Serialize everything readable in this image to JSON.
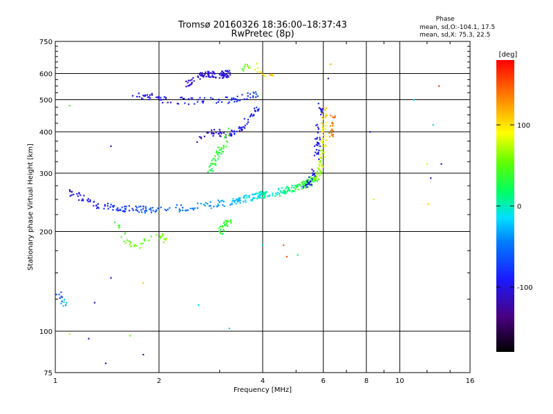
{
  "chart_data": {
    "type": "scatter",
    "title": "Tromsø 20160326 18:36:00–18:37:43",
    "subtitle": "RwPretec (8p)",
    "xlabel": "Frequency [MHz]",
    "ylabel": "Stationary phase Virtual Height [km]",
    "xscale": "log",
    "yscale": "log",
    "xlim": [
      1,
      16
    ],
    "ylim": [
      75,
      750
    ],
    "xticks": [
      1,
      2,
      4,
      6,
      8,
      10,
      16
    ],
    "xtick_labels": [
      "1",
      "2",
      "4",
      "6",
      "8",
      "10",
      "16"
    ],
    "yticks": [
      75,
      100,
      200,
      300,
      400,
      500,
      600,
      750
    ],
    "ytick_labels": [
      "75",
      "100",
      "200",
      "300",
      "400",
      "500",
      "600",
      "750"
    ],
    "grid": true,
    "stats": {
      "heading": "Phase",
      "line_o": "mean, sd,O:-104.1, 17.5",
      "line_x": "mean, sd,X: 75.3, 22.5"
    },
    "colorbar": {
      "label": "[deg]",
      "min": -180,
      "max": 180,
      "ticks": [
        100,
        0,
        -100
      ],
      "tick_labels": [
        "100",
        "0",
        "-100"
      ]
    },
    "traces": [
      {
        "name": "O-mode F-layer trace",
        "phase_deg": -105,
        "phase_end_deg": 30,
        "points": [
          [
            1.1,
            265
          ],
          [
            1.2,
            250
          ],
          [
            1.35,
            240
          ],
          [
            1.5,
            236
          ],
          [
            1.7,
            234
          ],
          [
            1.9,
            233
          ],
          [
            2.1,
            234
          ],
          [
            2.4,
            236
          ],
          [
            2.8,
            240
          ],
          [
            3.2,
            245
          ],
          [
            3.6,
            252
          ],
          [
            4.0,
            258
          ],
          [
            4.4,
            263
          ],
          [
            4.8,
            268
          ],
          [
            5.2,
            274
          ],
          [
            5.5,
            281
          ],
          [
            5.7,
            292
          ]
        ],
        "count": 260
      },
      {
        "name": "X-mode F-layer trace",
        "phase_deg": -20,
        "phase_end_deg": 110,
        "points": [
          [
            3.2,
            245
          ],
          [
            3.6,
            252
          ],
          [
            4.0,
            258
          ],
          [
            4.4,
            262
          ],
          [
            4.8,
            268
          ],
          [
            5.2,
            275
          ],
          [
            5.5,
            282
          ],
          [
            5.7,
            290
          ],
          [
            5.85,
            300
          ],
          [
            5.95,
            330
          ],
          [
            6.0,
            370
          ],
          [
            6.02,
            420
          ],
          [
            6.05,
            480
          ]
        ],
        "count": 170
      },
      {
        "name": "O-mode critical rise",
        "phase_deg": -100,
        "phase_end_deg": -90,
        "points": [
          [
            5.3,
            272
          ],
          [
            5.5,
            285
          ],
          [
            5.65,
            310
          ],
          [
            5.75,
            350
          ],
          [
            5.8,
            400
          ],
          [
            5.85,
            440
          ],
          [
            5.9,
            480
          ]
        ],
        "count": 60
      },
      {
        "name": "X-mode critical rise",
        "phase_deg": 130,
        "phase_end_deg": 150,
        "points": [
          [
            6.3,
            380
          ],
          [
            6.35,
            410
          ],
          [
            6.4,
            450
          ]
        ],
        "count": 20
      },
      {
        "name": "Multi-hop arc",
        "phase_deg": -105,
        "phase_end_deg": -75,
        "points": [
          [
            1.7,
            520
          ],
          [
            1.9,
            510
          ],
          [
            2.1,
            500
          ],
          [
            2.4,
            495
          ],
          [
            2.8,
            497
          ],
          [
            3.2,
            500
          ],
          [
            3.6,
            510
          ],
          [
            3.9,
            520
          ]
        ],
        "count": 90
      },
      {
        "name": "High echo cluster",
        "phase_deg": -110,
        "phase_end_deg": -100,
        "points": [
          [
            2.4,
            560
          ],
          [
            2.6,
            590
          ],
          [
            2.8,
            600
          ],
          [
            3.0,
            595
          ],
          [
            3.2,
            600
          ]
        ],
        "count": 90
      },
      {
        "name": "Mid loop",
        "phase_deg": -110,
        "phase_end_deg": -85,
        "points": [
          [
            2.6,
            380
          ],
          [
            2.9,
            400
          ],
          [
            3.2,
            390
          ],
          [
            3.5,
            410
          ],
          [
            3.7,
            450
          ],
          [
            3.9,
            480
          ]
        ],
        "count": 70
      },
      {
        "name": "Green vertical trace",
        "phase_deg": 30,
        "phase_end_deg": 40,
        "points": [
          [
            2.8,
            300
          ],
          [
            2.9,
            330
          ],
          [
            3.0,
            350
          ],
          [
            3.1,
            370
          ],
          [
            3.2,
            410
          ]
        ],
        "count": 50
      },
      {
        "name": "Low green cluster",
        "phase_deg": 30,
        "phase_end_deg": 45,
        "points": [
          [
            3.0,
            200
          ],
          [
            3.1,
            210
          ],
          [
            3.2,
            215
          ]
        ],
        "count": 30
      },
      {
        "name": "Sporadic echoes",
        "phase_deg": 40,
        "phase_end_deg": 60,
        "points": [
          [
            1.5,
            210
          ],
          [
            1.6,
            190
          ],
          [
            1.7,
            180
          ],
          [
            2.0,
            195
          ],
          [
            2.1,
            190
          ]
        ],
        "count": 40
      },
      {
        "name": "Low-frequency echoes",
        "phase_deg": -80,
        "phase_end_deg": -20,
        "points": [
          [
            1.02,
            130
          ],
          [
            1.05,
            125
          ],
          [
            1.08,
            120
          ]
        ],
        "count": 15
      },
      {
        "name": "Upper green patches",
        "phase_deg": 40,
        "phase_end_deg": 120,
        "points": [
          [
            3.5,
            620
          ],
          [
            3.7,
            640
          ],
          [
            4.0,
            600
          ],
          [
            4.3,
            590
          ]
        ],
        "count": 25
      }
    ],
    "scatter_points": [
      {
        "x": 1.4,
        "y": 80,
        "phase": -105
      },
      {
        "x": 1.25,
        "y": 95,
        "phase": -110
      },
      {
        "x": 1.8,
        "y": 85,
        "phase": -110
      },
      {
        "x": 1.65,
        "y": 97,
        "phase": 45
      },
      {
        "x": 1.1,
        "y": 98,
        "phase": 70
      },
      {
        "x": 1.3,
        "y": 122,
        "phase": -110
      },
      {
        "x": 1.45,
        "y": 145,
        "phase": -110
      },
      {
        "x": 1.8,
        "y": 140,
        "phase": 110
      },
      {
        "x": 1.45,
        "y": 362,
        "phase": -110
      },
      {
        "x": 1.1,
        "y": 480,
        "phase": 45
      },
      {
        "x": 3.2,
        "y": 102,
        "phase": -20
      },
      {
        "x": 4.0,
        "y": 182,
        "phase": -10
      },
      {
        "x": 4.6,
        "y": 182,
        "phase": 150
      },
      {
        "x": 4.7,
        "y": 168,
        "phase": 150
      },
      {
        "x": 5.05,
        "y": 170,
        "phase": 20
      },
      {
        "x": 8.2,
        "y": 400,
        "phase": -110
      },
      {
        "x": 8.4,
        "y": 250,
        "phase": 80
      },
      {
        "x": 11.0,
        "y": 500,
        "phase": -20
      },
      {
        "x": 12.0,
        "y": 320,
        "phase": 80
      },
      {
        "x": 12.5,
        "y": 420,
        "phase": -20
      },
      {
        "x": 13.0,
        "y": 550,
        "phase": 160
      },
      {
        "x": 13.2,
        "y": 320,
        "phase": -110
      },
      {
        "x": 12.1,
        "y": 242,
        "phase": 110
      },
      {
        "x": 12.3,
        "y": 290,
        "phase": -110
      },
      {
        "x": 6.2,
        "y": 580,
        "phase": -110
      },
      {
        "x": 6.3,
        "y": 640,
        "phase": 120
      },
      {
        "x": 2.6,
        "y": 120,
        "phase": -5
      }
    ]
  }
}
